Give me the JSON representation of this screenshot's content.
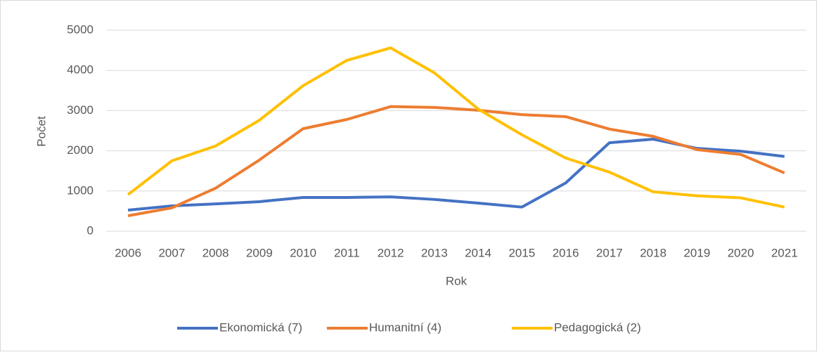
{
  "chart_data": {
    "type": "line",
    "x_label": "Rok",
    "y_label": "Počet",
    "categories": [
      "2006",
      "2007",
      "2008",
      "2009",
      "2010",
      "2011",
      "2012",
      "2013",
      "2014",
      "2015",
      "2016",
      "2017",
      "2018",
      "2019",
      "2020",
      "2021"
    ],
    "series": [
      {
        "name": "Ekonomická (7)",
        "color": "#4472c4",
        "values": [
          525,
          630,
          680,
          735,
          840,
          840,
          855,
          790,
          700,
          600,
          1200,
          2200,
          2290,
          2060,
          1990,
          1860
        ]
      },
      {
        "name": "Humanitní (4)",
        "color": "#ed7d31",
        "values": [
          385,
          580,
          1070,
          1770,
          2550,
          2780,
          3100,
          3080,
          3010,
          2900,
          2850,
          2540,
          2360,
          2030,
          1910,
          1450
        ]
      },
      {
        "name": "Pedagogická (2)",
        "color": "#ffc000",
        "values": [
          910,
          1750,
          2120,
          2760,
          3620,
          4250,
          4560,
          3940,
          3040,
          2400,
          1820,
          1470,
          980,
          880,
          830,
          600
        ]
      }
    ],
    "ylim": [
      0,
      5000
    ],
    "yticks": [
      0,
      1000,
      2000,
      3000,
      4000,
      5000
    ],
    "grid": true,
    "legend": "bottom"
  }
}
